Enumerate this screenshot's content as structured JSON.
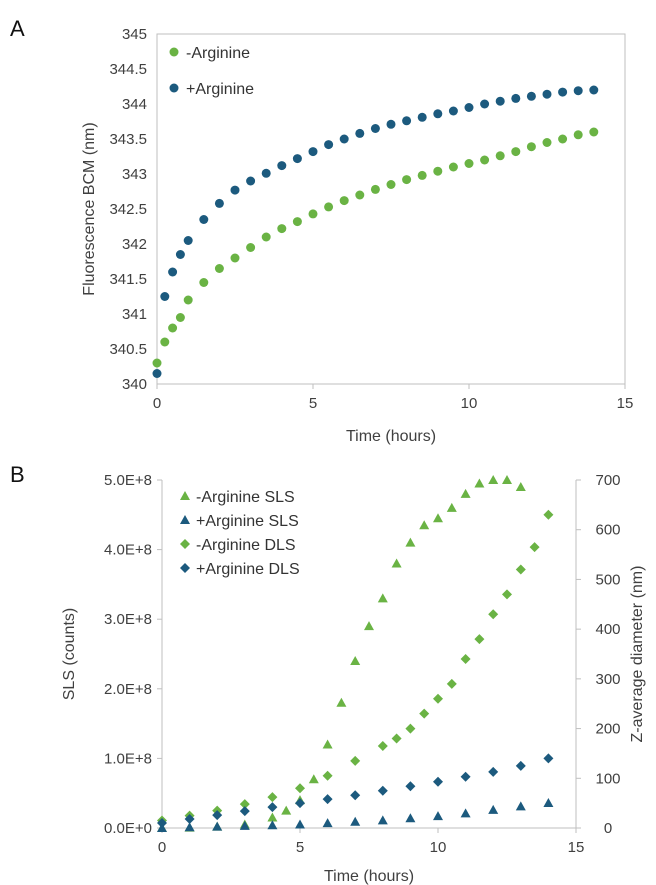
{
  "colors": {
    "green": "#6ab344",
    "blue": "#1c5a7e",
    "axis": "#bfbfbf",
    "text": "#404040"
  },
  "chart_data": [
    {
      "panel": "A",
      "type": "scatter",
      "xlabel": "Time (hours)",
      "ylabel": "Fluorescence BCM (nm)",
      "xlim": [
        0,
        15
      ],
      "ylim": [
        340,
        345
      ],
      "xticks": [
        "0",
        "5",
        "10",
        "15"
      ],
      "yticks": [
        "340",
        "340.5",
        "341",
        "341.5",
        "342",
        "342.5",
        "343",
        "343.5",
        "344",
        "344.5",
        "345"
      ],
      "grid": false,
      "legend": "top-left",
      "series": [
        {
          "name": "-Arginine",
          "color": "#6ab344",
          "marker": "circle",
          "x": [
            0,
            0.25,
            0.5,
            0.75,
            1,
            1.5,
            2,
            2.5,
            3,
            3.5,
            4,
            4.5,
            5,
            5.5,
            6,
            6.5,
            7,
            7.5,
            8,
            8.5,
            9,
            9.5,
            10,
            10.5,
            11,
            11.5,
            12,
            12.5,
            13,
            13.5,
            14
          ],
          "y": [
            340.3,
            340.6,
            340.8,
            340.95,
            341.2,
            341.45,
            341.65,
            341.8,
            341.95,
            342.1,
            342.22,
            342.32,
            342.43,
            342.53,
            342.62,
            342.7,
            342.78,
            342.85,
            342.92,
            342.98,
            343.04,
            343.1,
            343.15,
            343.2,
            343.26,
            343.32,
            343.39,
            343.45,
            343.5,
            343.56,
            343.6
          ]
        },
        {
          "name": "+Arginine",
          "color": "#1c5a7e",
          "marker": "circle",
          "x": [
            0,
            0.25,
            0.5,
            0.75,
            1,
            1.5,
            2,
            2.5,
            3,
            3.5,
            4,
            4.5,
            5,
            5.5,
            6,
            6.5,
            7,
            7.5,
            8,
            8.5,
            9,
            9.5,
            10,
            10.5,
            11,
            11.5,
            12,
            12.5,
            13,
            13.5,
            14
          ],
          "y": [
            340.15,
            341.25,
            341.6,
            341.85,
            342.05,
            342.35,
            342.58,
            342.77,
            342.9,
            343.01,
            343.12,
            343.22,
            343.32,
            343.42,
            343.5,
            343.58,
            343.65,
            343.71,
            343.76,
            343.81,
            343.86,
            343.9,
            343.95,
            344.0,
            344.04,
            344.08,
            344.11,
            344.14,
            344.17,
            344.19,
            344.2
          ]
        }
      ]
    },
    {
      "panel": "B",
      "type": "scatter",
      "xlabel": "Time (hours)",
      "ylabel": "SLS (counts)",
      "y2label": "Z-average diameter (nm)",
      "xlim": [
        0,
        15
      ],
      "ylim": [
        0,
        500000000
      ],
      "y2lim": [
        0,
        700
      ],
      "xticks": [
        "0",
        "5",
        "10",
        "15"
      ],
      "yticks": [
        "0.0E+0",
        "1.0E+8",
        "2.0E+8",
        "3.0E+8",
        "4.0E+8",
        "5.0E+8"
      ],
      "y2ticks": [
        "0",
        "100",
        "200",
        "300",
        "400",
        "500",
        "600",
        "700"
      ],
      "grid": false,
      "legend": "top-left",
      "series": [
        {
          "name": "-Arginine SLS",
          "axis": "left",
          "color": "#6ab344",
          "marker": "triangle",
          "x": [
            0,
            1,
            2,
            3,
            4,
            4.5,
            5,
            5.5,
            6,
            6.5,
            7,
            7.5,
            8,
            8.5,
            9,
            9.5,
            10,
            10.5,
            11,
            11.5,
            12,
            12.5,
            13
          ],
          "y": [
            0,
            500000,
            2000000,
            5000000,
            15000000,
            25000000,
            40000000,
            70000000,
            120000000,
            180000000,
            240000000,
            290000000,
            330000000,
            380000000,
            410000000,
            435000000,
            445000000,
            460000000,
            480000000,
            495000000,
            500000000,
            500000000,
            490000000
          ]
        },
        {
          "name": "+Arginine SLS",
          "axis": "left",
          "color": "#1c5a7e",
          "marker": "triangle",
          "x": [
            0,
            1,
            2,
            3,
            4,
            5,
            6,
            7,
            8,
            9,
            10,
            11,
            12,
            13,
            14
          ],
          "y": [
            0,
            1000000,
            2000000,
            3000000,
            4000000,
            5000000,
            7000000,
            9000000,
            11000000,
            14000000,
            17000000,
            21000000,
            26000000,
            31000000,
            36000000
          ]
        },
        {
          "name": "-Arginine DLS",
          "axis": "right",
          "color": "#6ab344",
          "marker": "diamond",
          "x": [
            0,
            1,
            2,
            3,
            4,
            5,
            6,
            7,
            8,
            8.5,
            9,
            9.5,
            10,
            10.5,
            11,
            11.5,
            12,
            12.5,
            13,
            13.5,
            14
          ],
          "y": [
            15,
            25,
            35,
            48,
            62,
            80,
            105,
            135,
            165,
            180,
            200,
            230,
            260,
            290,
            340,
            380,
            430,
            470,
            520,
            565,
            630
          ]
        },
        {
          "name": "+Arginine DLS",
          "axis": "right",
          "color": "#1c5a7e",
          "marker": "diamond",
          "x": [
            0,
            1,
            2,
            3,
            4,
            5,
            6,
            7,
            8,
            9,
            10,
            11,
            12,
            13,
            14
          ],
          "y": [
            10,
            18,
            26,
            34,
            42,
            50,
            58,
            66,
            75,
            84,
            93,
            103,
            113,
            125,
            140
          ]
        }
      ]
    }
  ]
}
